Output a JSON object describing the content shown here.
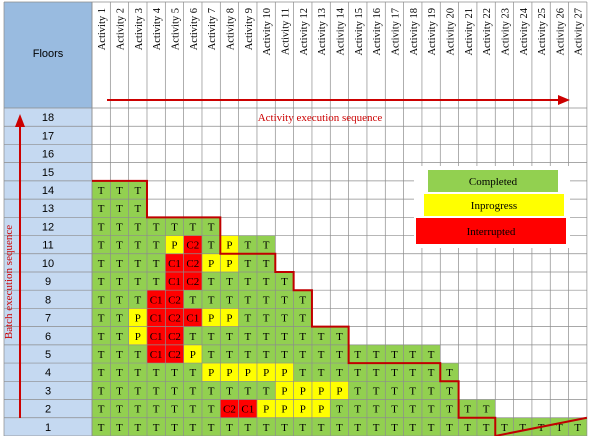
{
  "header": {
    "floors_label": "Floors"
  },
  "activities": [
    "Activity 1",
    "Activity 2",
    "Activity 3",
    "Activity 4",
    "Activity 5",
    "Activity 6",
    "Activity 7",
    "Activity 8",
    "Activity 9",
    "Activity 10",
    "Activity 11",
    "Activity 12",
    "Activity 13",
    "Activity 14",
    "Activity 15",
    "Activity 16",
    "Activity 17",
    "Activity 18",
    "Activity 19",
    "Activity 20",
    "Activity 21",
    "Activity 22",
    "Activity 23",
    "Activity 24",
    "Activity 25",
    "Activity 26",
    "Activity 27"
  ],
  "floors": [
    "18",
    "17",
    "16",
    "15",
    "14",
    "13",
    "12",
    "11",
    "10",
    "9",
    "8",
    "7",
    "6",
    "5",
    "4",
    "3",
    "2",
    "1"
  ],
  "labels": {
    "activity_sequence": "Activity execution sequence",
    "batch_sequence": "Batch execution sequence"
  },
  "legend": [
    {
      "label": "Completed",
      "color": "#92d050",
      "key": "T"
    },
    {
      "label": "Inprogress",
      "color": "#ffff00",
      "key": "P"
    },
    {
      "label": "Interrupted",
      "color": "#ff0000",
      "key": "C"
    }
  ],
  "colors": {
    "header_blue": "#99bbe0",
    "completed": "#92d050",
    "inprogress": "#ffff00",
    "interrupted": "#ff0000",
    "boundary": "#c00000",
    "arrow": "#cc0000"
  },
  "grid": {
    "14": [
      "T",
      "T",
      "T"
    ],
    "13": [
      "T",
      "T",
      "T"
    ],
    "12": [
      "T",
      "T",
      "T",
      "T",
      "T",
      "T",
      "T"
    ],
    "11": [
      "T",
      "T",
      "T",
      "T",
      "P",
      "C2",
      "T",
      "P",
      "T",
      "T"
    ],
    "10": [
      "T",
      "T",
      "T",
      "T",
      "C1",
      "C2",
      "P",
      "P",
      "T",
      "T"
    ],
    "9": [
      "T",
      "T",
      "T",
      "T",
      "C1",
      "C2",
      "T",
      "T",
      "T",
      "T",
      "T"
    ],
    "8": [
      "T",
      "T",
      "T",
      "C1",
      "C2",
      "T",
      "T",
      "T",
      "T",
      "T",
      "T",
      "T"
    ],
    "7": [
      "T",
      "T",
      "P",
      "C1",
      "C2",
      "C1",
      "P",
      "P",
      "T",
      "T",
      "T",
      "T"
    ],
    "6": [
      "T",
      "T",
      "P",
      "C1",
      "C2",
      "T",
      "T",
      "T",
      "T",
      "T",
      "T",
      "T",
      "T",
      "T"
    ],
    "5": [
      "T",
      "T",
      "T",
      "C1",
      "C2",
      "P",
      "T",
      "T",
      "T",
      "T",
      "T",
      "T",
      "T",
      "T",
      "T",
      "T",
      "T",
      "T",
      "T"
    ],
    "4": [
      "T",
      "T",
      "T",
      "T",
      "T",
      "T",
      "P",
      "P",
      "P",
      "P",
      "P",
      "T",
      "T",
      "T",
      "T",
      "T",
      "T",
      "T",
      "T",
      "T"
    ],
    "3": [
      "T",
      "T",
      "T",
      "T",
      "T",
      "T",
      "T",
      "T",
      "T",
      "T",
      "P",
      "P",
      "P",
      "P",
      "T",
      "T",
      "T",
      "T",
      "T",
      "T"
    ],
    "2": [
      "T",
      "T",
      "T",
      "T",
      "T",
      "T",
      "T",
      "C2",
      "C1",
      "P",
      "P",
      "P",
      "P",
      "T",
      "T",
      "T",
      "T",
      "T",
      "T",
      "T",
      "T",
      "T"
    ],
    "1": [
      "T",
      "T",
      "T",
      "T",
      "T",
      "T",
      "T",
      "T",
      "T",
      "T",
      "T",
      "T",
      "T",
      "T",
      "T",
      "T",
      "T",
      "T",
      "T",
      "T",
      "T",
      "T",
      "T",
      "T",
      "T",
      "T",
      "T"
    ]
  },
  "boundary_steps": [
    3,
    3,
    7,
    7,
    10,
    11,
    12,
    12,
    14,
    14,
    19,
    20,
    20,
    22,
    27
  ]
}
